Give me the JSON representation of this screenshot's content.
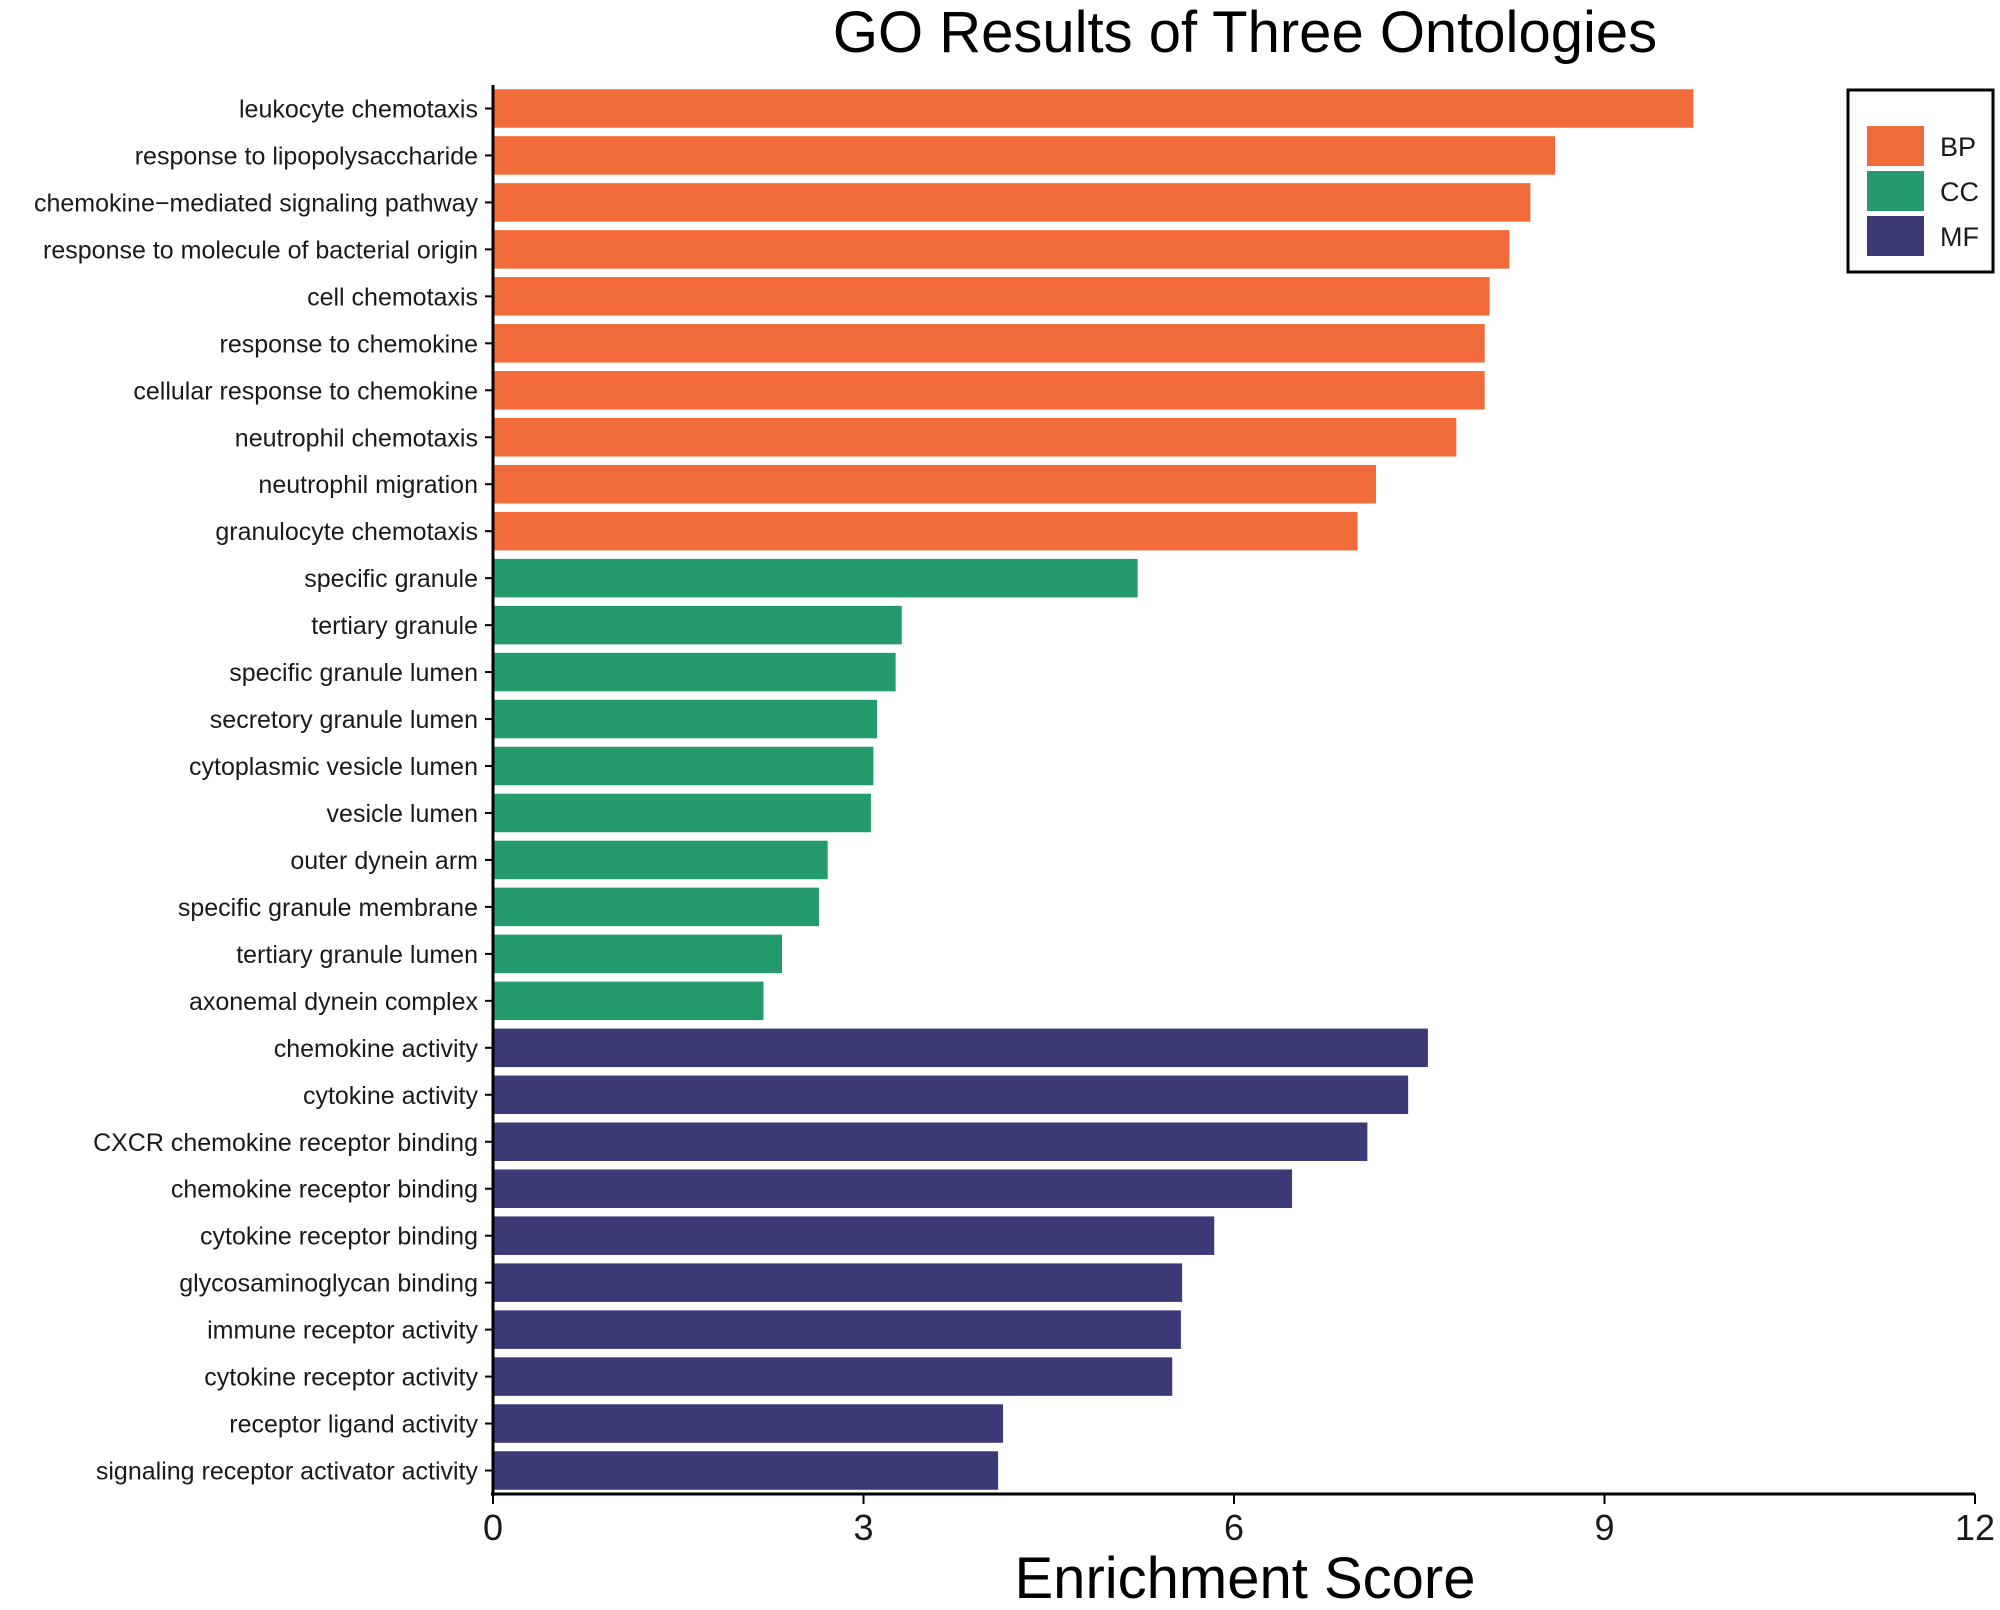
{
  "chart_data": {
    "type": "bar",
    "orientation": "horizontal",
    "title": "GO Results of Three Ontologies",
    "xlabel": "Enrichment Score",
    "ylabel": "",
    "xlim": [
      0,
      12
    ],
    "xticks": [
      0,
      3,
      6,
      9,
      12
    ],
    "grid": false,
    "legend_position": "top-right",
    "groups": [
      {
        "name": "BP",
        "color": "#F26B3A"
      },
      {
        "name": "CC",
        "color": "#239B6D"
      },
      {
        "name": "MF",
        "color": "#3B3A77"
      }
    ],
    "bars": [
      {
        "label": "leukocyte chemotaxis",
        "value": 9.72,
        "group": "BP"
      },
      {
        "label": "response to lipopolysaccharide",
        "value": 8.6,
        "group": "BP"
      },
      {
        "label": "chemokine−mediated signaling pathway",
        "value": 8.4,
        "group": "BP"
      },
      {
        "label": "response to molecule of bacterial origin",
        "value": 8.23,
        "group": "BP"
      },
      {
        "label": "cell chemotaxis",
        "value": 8.07,
        "group": "BP"
      },
      {
        "label": "response to chemokine",
        "value": 8.03,
        "group": "BP"
      },
      {
        "label": "cellular response to chemokine",
        "value": 8.03,
        "group": "BP"
      },
      {
        "label": "neutrophil chemotaxis",
        "value": 7.8,
        "group": "BP"
      },
      {
        "label": "neutrophil migration",
        "value": 7.15,
        "group": "BP"
      },
      {
        "label": "granulocyte chemotaxis",
        "value": 7.0,
        "group": "BP"
      },
      {
        "label": "specific granule",
        "value": 5.22,
        "group": "CC"
      },
      {
        "label": "tertiary granule",
        "value": 3.31,
        "group": "CC"
      },
      {
        "label": "specific granule lumen",
        "value": 3.26,
        "group": "CC"
      },
      {
        "label": "secretory granule lumen",
        "value": 3.11,
        "group": "CC"
      },
      {
        "label": "cytoplasmic vesicle lumen",
        "value": 3.08,
        "group": "CC"
      },
      {
        "label": "vesicle lumen",
        "value": 3.06,
        "group": "CC"
      },
      {
        "label": "outer dynein arm",
        "value": 2.71,
        "group": "CC"
      },
      {
        "label": "specific granule membrane",
        "value": 2.64,
        "group": "CC"
      },
      {
        "label": "tertiary granule lumen",
        "value": 2.34,
        "group": "CC"
      },
      {
        "label": "axonemal dynein complex",
        "value": 2.19,
        "group": "CC"
      },
      {
        "label": "chemokine activity",
        "value": 7.57,
        "group": "MF"
      },
      {
        "label": "cytokine activity",
        "value": 7.41,
        "group": "MF"
      },
      {
        "label": "CXCR chemokine receptor binding",
        "value": 7.08,
        "group": "MF"
      },
      {
        "label": "chemokine receptor binding",
        "value": 6.47,
        "group": "MF"
      },
      {
        "label": "cytokine receptor binding",
        "value": 5.84,
        "group": "MF"
      },
      {
        "label": "glycosaminoglycan binding",
        "value": 5.58,
        "group": "MF"
      },
      {
        "label": "immune receptor activity",
        "value": 5.57,
        "group": "MF"
      },
      {
        "label": "cytokine receptor activity",
        "value": 5.5,
        "group": "MF"
      },
      {
        "label": "receptor ligand activity",
        "value": 4.13,
        "group": "MF"
      },
      {
        "label": "signaling receptor activator activity",
        "value": 4.09,
        "group": "MF"
      }
    ]
  }
}
